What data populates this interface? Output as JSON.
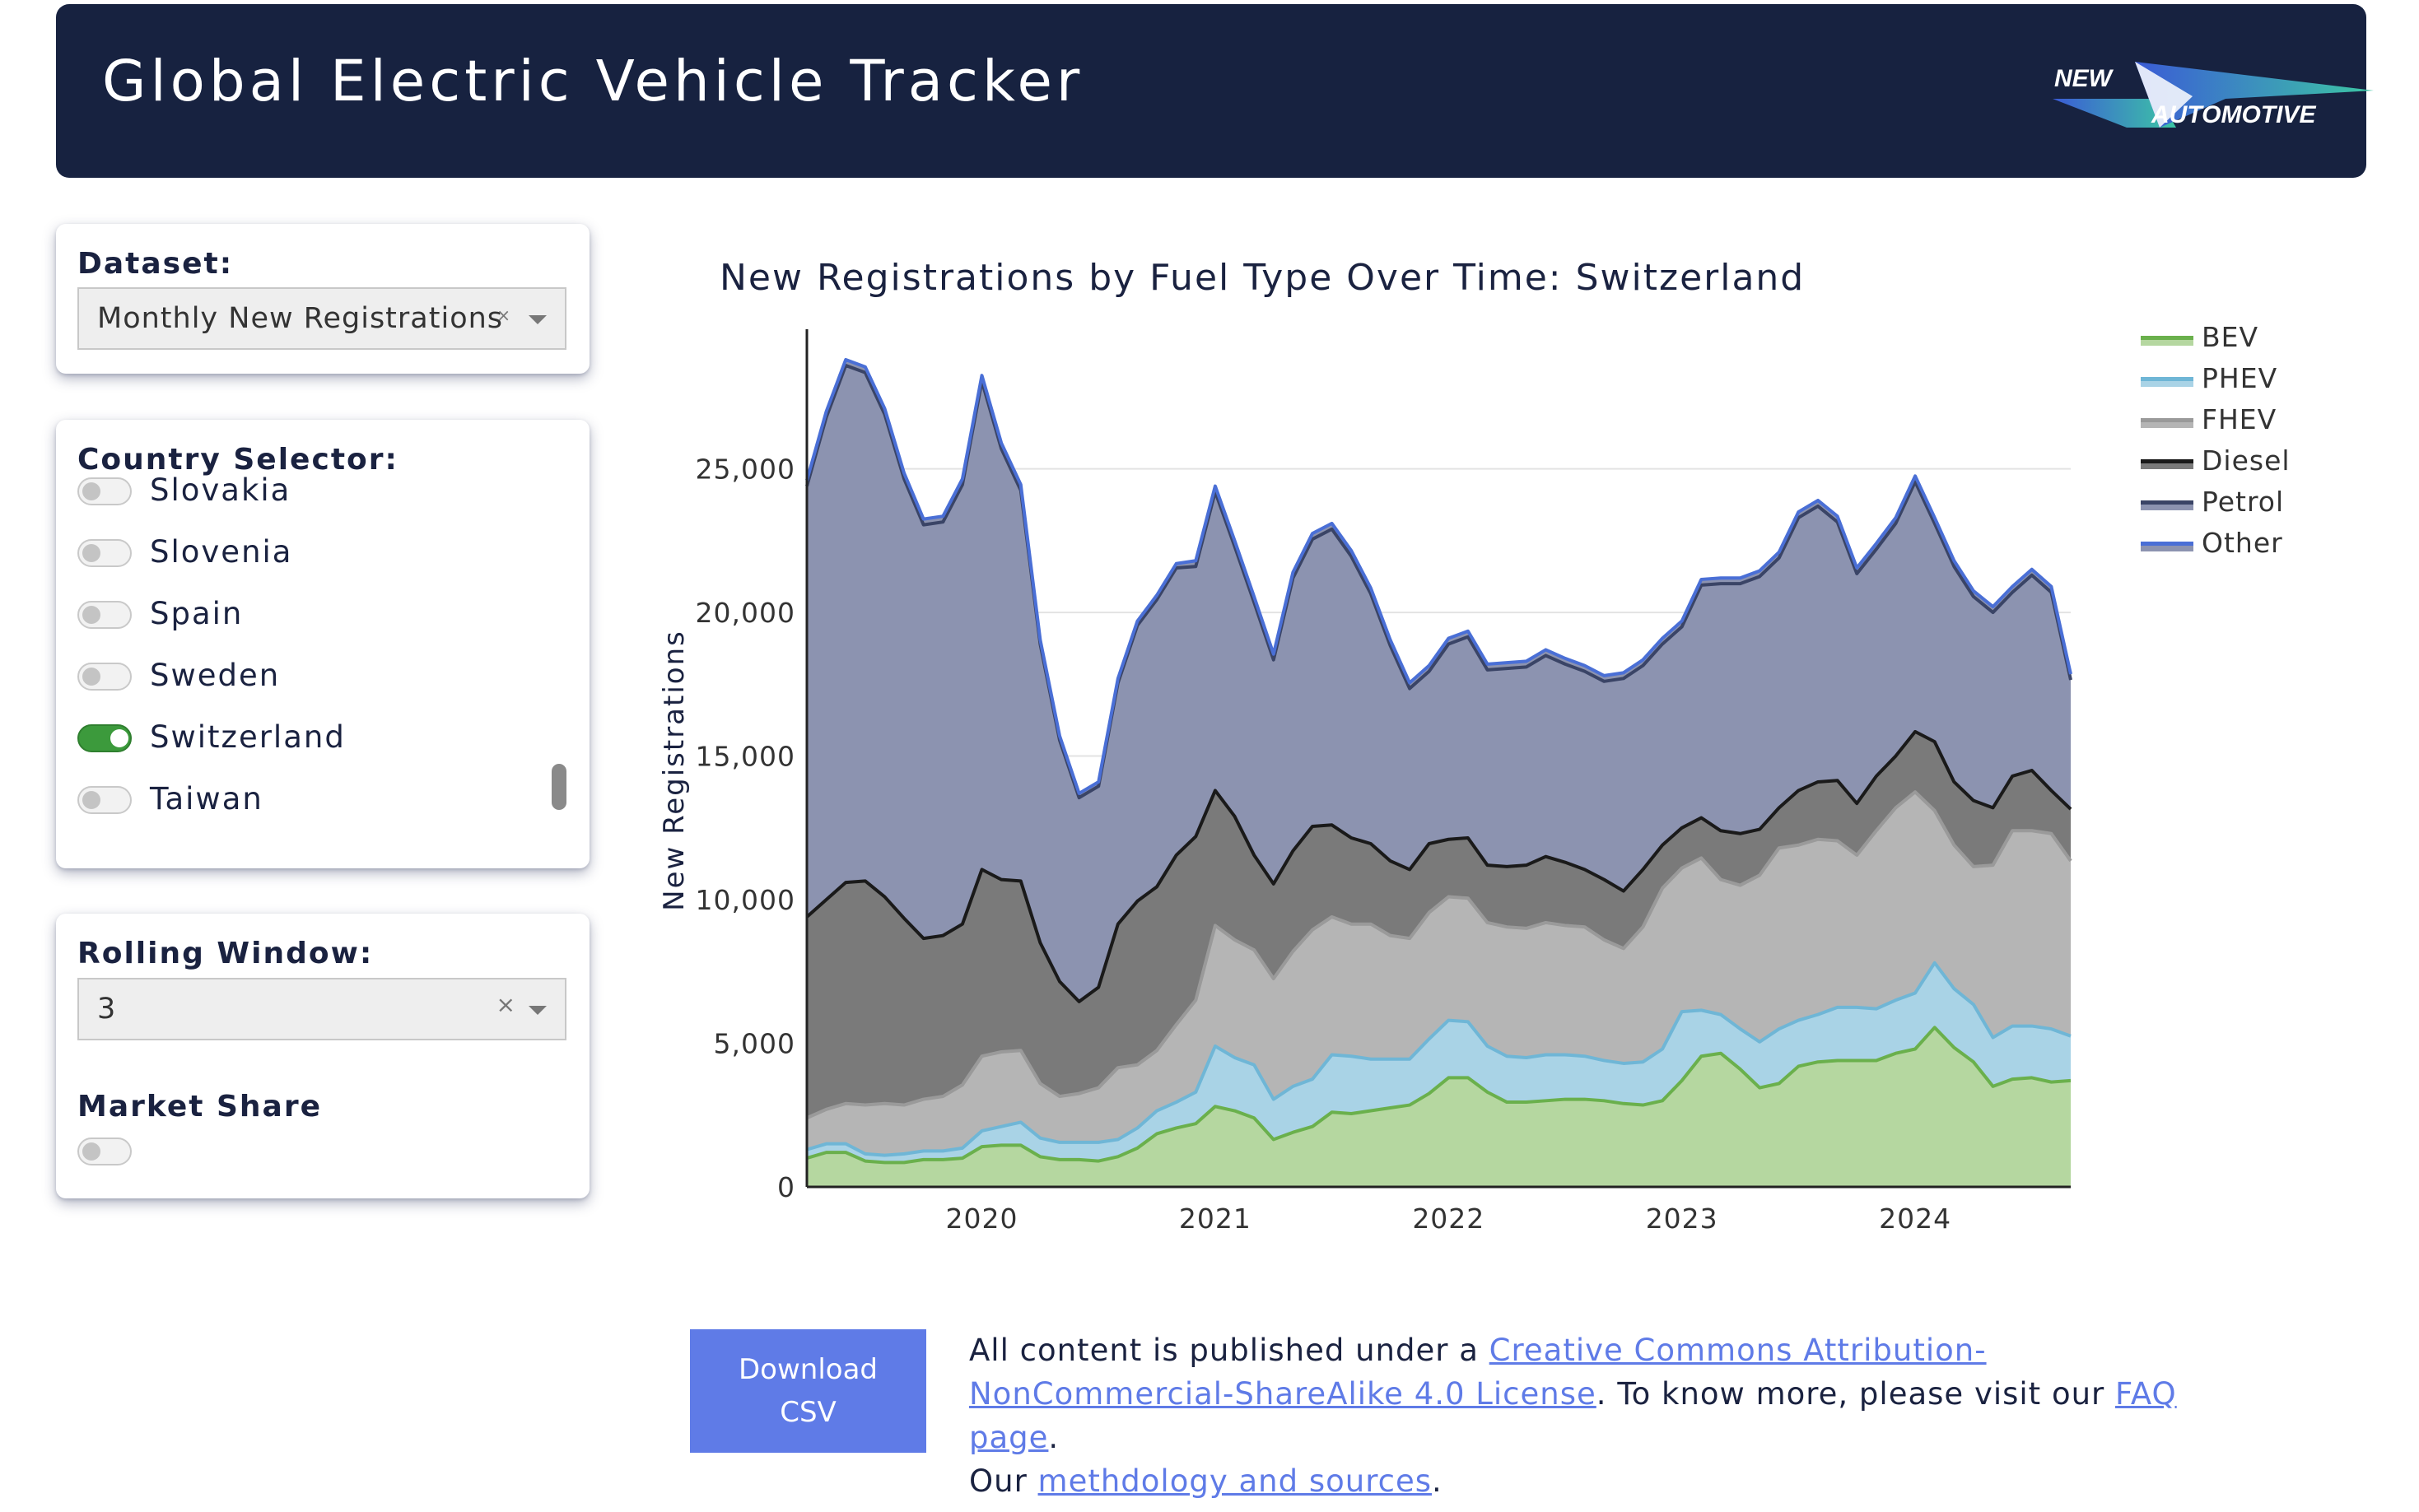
{
  "header": {
    "title": "Global Electric Vehicle Tracker",
    "logo_text_top": "NEW",
    "logo_text_bottom": "AUTOMOTIVE"
  },
  "dataset_panel": {
    "label": "Dataset:",
    "selected": "Monthly New Registrations",
    "clear_icon": "×"
  },
  "country_panel": {
    "label": "Country Selector:",
    "countries": [
      {
        "name": "Slovakia",
        "selected": false
      },
      {
        "name": "Slovenia",
        "selected": false
      },
      {
        "name": "Spain",
        "selected": false
      },
      {
        "name": "Sweden",
        "selected": false
      },
      {
        "name": "Switzerland",
        "selected": true
      },
      {
        "name": "Taiwan",
        "selected": false
      }
    ]
  },
  "rolling_panel": {
    "label": "Rolling Window:",
    "selected": "3",
    "clear_icon": "×",
    "market_share_label": "Market Share",
    "market_share_on": false
  },
  "colors": {
    "accent": "#5f7be7",
    "header_bg": "#172240",
    "toggle_on": "#3c9a3c"
  },
  "footer": {
    "download_label": "Download CSV",
    "text_1": "All content is published under a ",
    "license_link": "Creative Commons Attribution-NonCommercial-ShareAlike 4.0 License",
    "text_2": ". To know more, please visit our ",
    "faq_link": "FAQ page",
    "text_3": ".",
    "text_4": "Our ",
    "method_link": "methdology and sources",
    "text_5": "."
  },
  "chart_data": {
    "type": "area",
    "stacked": true,
    "title": "New Registrations by Fuel Type Over Time: Switzerland",
    "xlabel": "",
    "ylabel": "New Registrations",
    "x_start": "2019-04",
    "x_end": "2024-09",
    "x_ticks": [
      "2020",
      "2021",
      "2022",
      "2023",
      "2024"
    ],
    "y_ticks": [
      "0",
      "5,000",
      "10,000",
      "15,000",
      "20,000",
      "25,000"
    ],
    "ylim": [
      0,
      29000
    ],
    "grid": true,
    "legend_position": "top-right",
    "x": [
      "2019-04",
      "2019-05",
      "2019-06",
      "2019-07",
      "2019-08",
      "2019-09",
      "2019-10",
      "2019-11",
      "2019-12",
      "2020-01",
      "2020-02",
      "2020-03",
      "2020-04",
      "2020-05",
      "2020-06",
      "2020-07",
      "2020-08",
      "2020-09",
      "2020-10",
      "2020-11",
      "2020-12",
      "2021-01",
      "2021-02",
      "2021-03",
      "2021-04",
      "2021-05",
      "2021-06",
      "2021-07",
      "2021-08",
      "2021-09",
      "2021-10",
      "2021-11",
      "2021-12",
      "2022-01",
      "2022-02",
      "2022-03",
      "2022-04",
      "2022-05",
      "2022-06",
      "2022-07",
      "2022-08",
      "2022-09",
      "2022-10",
      "2022-11",
      "2022-12",
      "2023-01",
      "2023-02",
      "2023-03",
      "2023-04",
      "2023-05",
      "2023-06",
      "2023-07",
      "2023-08",
      "2023-09",
      "2023-10",
      "2023-11",
      "2023-12",
      "2024-01",
      "2024-02",
      "2024-03",
      "2024-04",
      "2024-05",
      "2024-06",
      "2024-07",
      "2024-08",
      "2024-09"
    ],
    "series": [
      {
        "name": "BEV",
        "color": "#6ab04c",
        "fill": "#b5d7a0",
        "values": [
          1000,
          1200,
          1200,
          900,
          850,
          850,
          950,
          950,
          1000,
          1400,
          1450,
          1450,
          1050,
          950,
          950,
          900,
          1050,
          1350,
          1850,
          2050,
          2200,
          2800,
          2650,
          2400,
          1650,
          1900,
          2100,
          2600,
          2550,
          2650,
          2750,
          2850,
          3250,
          3800,
          3800,
          3300,
          2950,
          2950,
          3000,
          3050,
          3050,
          3000,
          2900,
          2850,
          3000,
          3700,
          4550,
          4650,
          4100,
          3450,
          3600,
          4200,
          4350,
          4400,
          4400,
          4400,
          4650,
          4800,
          5550,
          4850,
          4350,
          3500,
          3750,
          3800,
          3650,
          3700
        ]
      },
      {
        "name": "PHEV",
        "color": "#6fb6d6",
        "fill": "#a9d3e6",
        "values": [
          300,
          300,
          300,
          250,
          250,
          300,
          300,
          300,
          350,
          550,
          650,
          800,
          650,
          600,
          600,
          650,
          600,
          700,
          800,
          900,
          1100,
          2100,
          1850,
          1850,
          1400,
          1600,
          1650,
          2000,
          2000,
          1800,
          1700,
          1600,
          1900,
          2000,
          1950,
          1600,
          1600,
          1550,
          1600,
          1550,
          1500,
          1400,
          1400,
          1500,
          1800,
          2400,
          1600,
          1350,
          1400,
          1600,
          1900,
          1600,
          1650,
          1850,
          1850,
          1800,
          1850,
          1950,
          2250,
          2050,
          2000,
          1700,
          1850,
          1800,
          1850,
          1550
        ]
      },
      {
        "name": "FHEV",
        "color": "#9a9a9a",
        "fill": "#b5b5b5",
        "values": [
          1100,
          1200,
          1400,
          1700,
          1800,
          1700,
          1800,
          1900,
          2200,
          2600,
          2600,
          2500,
          1900,
          1600,
          1700,
          1900,
          2500,
          2200,
          2100,
          2700,
          3200,
          4200,
          4100,
          4000,
          4200,
          4700,
          5200,
          4800,
          4600,
          4700,
          4300,
          4200,
          4400,
          4300,
          4300,
          4300,
          4500,
          4500,
          4600,
          4500,
          4500,
          4200,
          4000,
          4700,
          5600,
          5000,
          5300,
          4700,
          5000,
          5800,
          6300,
          6100,
          6100,
          5800,
          5300,
          6200,
          6700,
          7000,
          5300,
          5000,
          4800,
          6000,
          6800,
          6800,
          6800,
          6100
        ]
      },
      {
        "name": "Diesel",
        "color": "#1a1a1a",
        "fill": "#7a7a7a",
        "values": [
          7000,
          7300,
          7700,
          7800,
          7200,
          6500,
          5600,
          5600,
          5600,
          6500,
          6000,
          5900,
          4900,
          4000,
          3200,
          3500,
          5000,
          5700,
          5700,
          5900,
          5700,
          4700,
          4300,
          3300,
          3300,
          3500,
          3600,
          3200,
          3000,
          2800,
          2600,
          2400,
          2400,
          2000,
          2100,
          2000,
          2100,
          2200,
          2300,
          2200,
          2000,
          2100,
          2000,
          2000,
          1500,
          1400,
          1400,
          1700,
          1800,
          1600,
          1400,
          1900,
          2000,
          2100,
          1800,
          1900,
          1800,
          2100,
          2400,
          2200,
          2300,
          2000,
          1900,
          2100,
          1500,
          1800
        ]
      },
      {
        "name": "Petrol",
        "color": "#3a4466",
        "fill": "#8c93b0",
        "values": [
          15000,
          16800,
          18000,
          17700,
          16800,
          15300,
          14400,
          14400,
          15300,
          17000,
          15000,
          13600,
          10400,
          8400,
          7100,
          7000,
          8400,
          9600,
          10000,
          10000,
          9400,
          10400,
          9400,
          8800,
          7800,
          9500,
          10000,
          10300,
          9800,
          8700,
          7500,
          6300,
          6000,
          6800,
          7000,
          6800,
          6900,
          6900,
          7000,
          6900,
          6900,
          6900,
          7400,
          7100,
          7000,
          7000,
          8100,
          8600,
          8700,
          8800,
          8700,
          9500,
          9600,
          9000,
          8000,
          7900,
          8100,
          8700,
          7600,
          7500,
          7100,
          6800,
          6400,
          6800,
          6900,
          4500
        ]
      },
      {
        "name": "Other",
        "color": "#4a6fd6",
        "fill": "#8c93b0",
        "values": [
          200,
          200,
          200,
          200,
          200,
          200,
          200,
          200,
          200,
          200,
          200,
          200,
          150,
          150,
          150,
          150,
          150,
          150,
          150,
          150,
          200,
          200,
          200,
          200,
          200,
          200,
          200,
          200,
          200,
          200,
          200,
          200,
          200,
          200,
          200,
          200,
          200,
          200,
          200,
          200,
          200,
          200,
          200,
          200,
          200,
          200,
          200,
          200,
          200,
          200,
          200,
          200,
          200,
          200,
          200,
          200,
          200,
          200,
          200,
          200,
          200,
          200,
          200,
          200,
          200,
          200
        ]
      }
    ]
  }
}
